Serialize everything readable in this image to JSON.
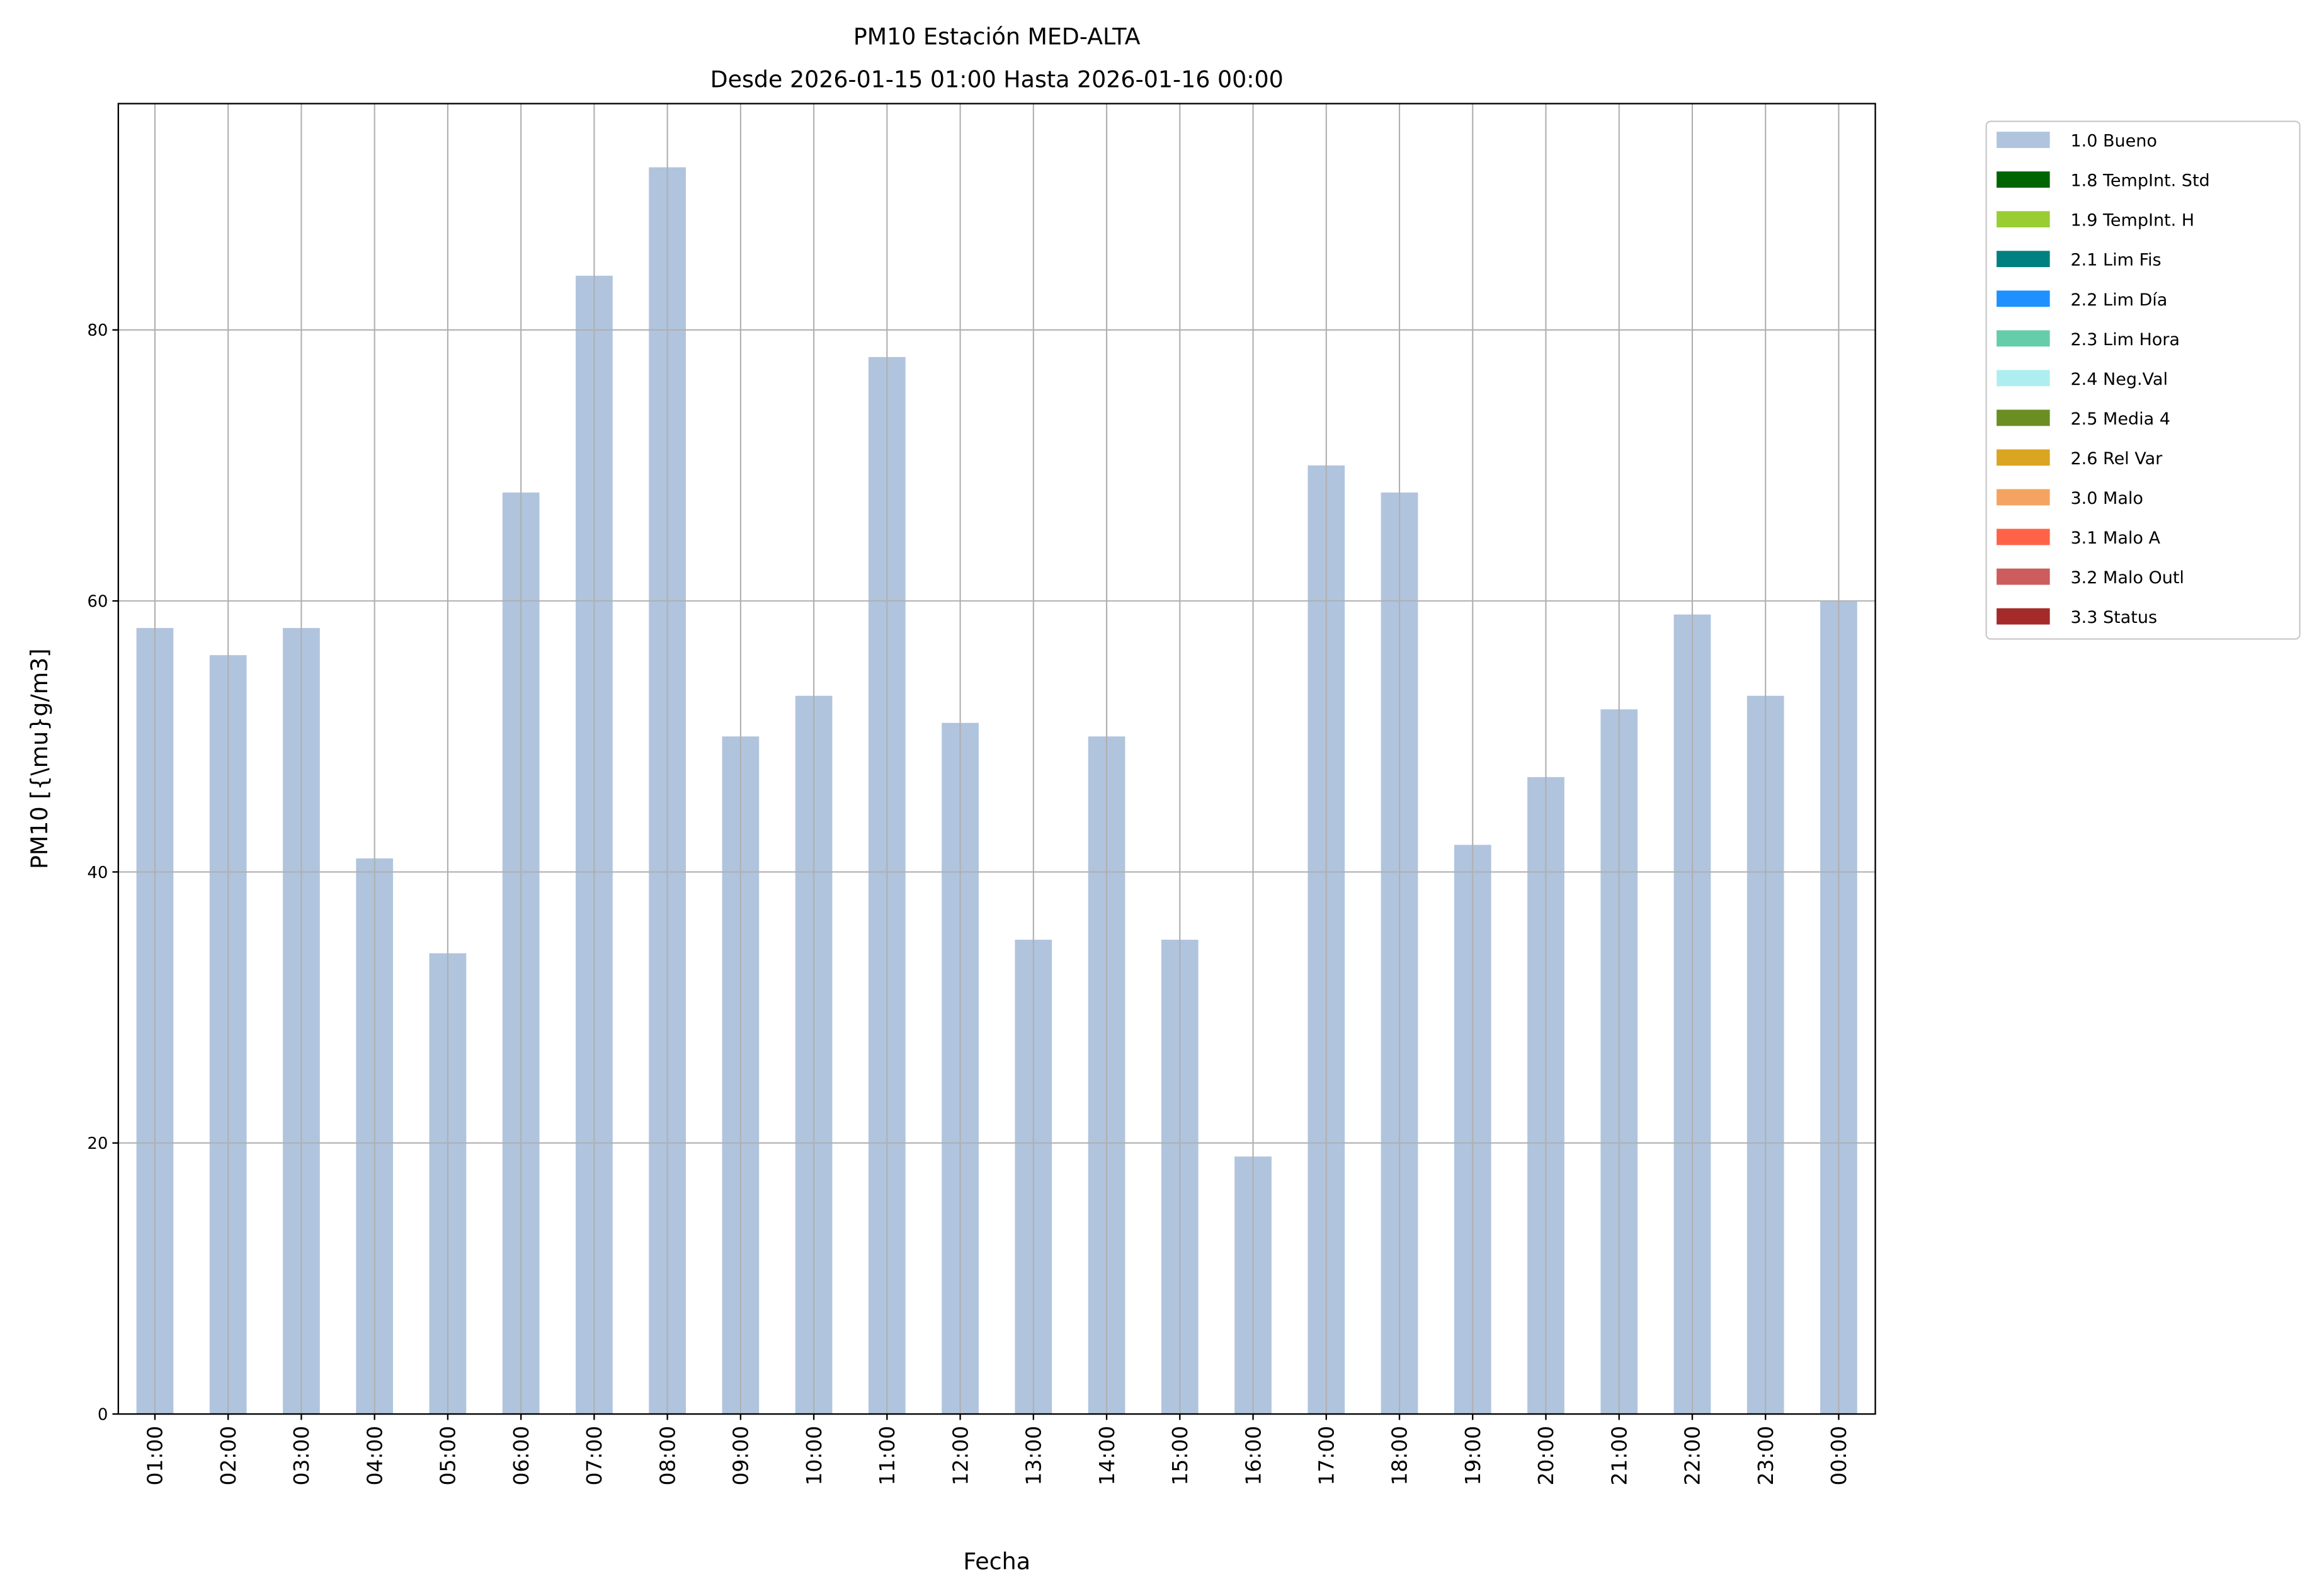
{
  "chart_data": {
    "type": "bar",
    "title": "PM10 Estación MED-ALTA",
    "subtitle": "Desde 2026-01-15 01:00 Hasta 2026-01-16 00:00",
    "xlabel": "Fecha",
    "ylabel": "PM10 [{\\mu}g/m3]",
    "ylim": [
      0,
      96.7
    ],
    "yticks": [
      0,
      20,
      40,
      60,
      80
    ],
    "grid": true,
    "legend_placement": "outside-top-right",
    "categories": [
      "01:00",
      "02:00",
      "03:00",
      "04:00",
      "05:00",
      "06:00",
      "07:00",
      "08:00",
      "09:00",
      "10:00",
      "11:00",
      "12:00",
      "13:00",
      "14:00",
      "15:00",
      "16:00",
      "17:00",
      "18:00",
      "19:00",
      "20:00",
      "21:00",
      "22:00",
      "23:00",
      "00:00"
    ],
    "series": [
      {
        "name": "1.0 Bueno",
        "color": "#b0c4de",
        "values": [
          58,
          56,
          58,
          41,
          34,
          68,
          84,
          92,
          50,
          53,
          78,
          51,
          35,
          50,
          35,
          19,
          70,
          68,
          42,
          47,
          52,
          59,
          53,
          60
        ]
      }
    ],
    "legend": [
      {
        "label": "1.0 Bueno",
        "color": "#b0c4de"
      },
      {
        "label": "1.8 TempInt. Std",
        "color": "#006400"
      },
      {
        "label": "1.9 TempInt. H",
        "color": "#9acd32"
      },
      {
        "label": "2.1 Lim Fis",
        "color": "#008080"
      },
      {
        "label": "2.2 Lim Día",
        "color": "#1e90ff"
      },
      {
        "label": "2.3 Lim Hora",
        "color": "#66cdaa"
      },
      {
        "label": "2.4 Neg.Val",
        "color": "#afeeee"
      },
      {
        "label": "2.5 Media 4",
        "color": "#6b8e23"
      },
      {
        "label": "2.6 Rel Var",
        "color": "#daa520"
      },
      {
        "label": "3.0 Malo",
        "color": "#f4a460"
      },
      {
        "label": "3.1 Malo A",
        "color": "#ff6347"
      },
      {
        "label": "3.2 Malo Outl",
        "color": "#cd5c5c"
      },
      {
        "label": "3.3 Status",
        "color": "#a52a2a"
      }
    ]
  }
}
